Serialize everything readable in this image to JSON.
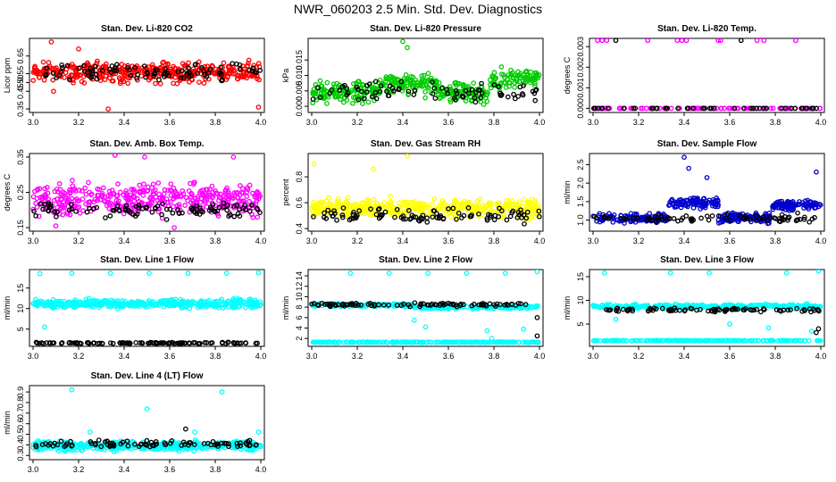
{
  "figure": {
    "title": "NWR_060203  2.5 Min. Std. Dev. Diagnostics",
    "secondary_color": "#000000"
  },
  "chart_data": [
    {
      "id": "co2",
      "type": "scatter",
      "title": "Stan. Dev. Li-820 CO2",
      "xlabel": "",
      "ylabel": "Licor ppm",
      "xlim": [
        3.0,
        4.0
      ],
      "ylim": [
        0.33,
        0.75
      ],
      "xticks": [
        "3.0",
        "3.2",
        "3.4",
        "3.6",
        "3.8",
        "4.0"
      ],
      "yticks": [
        "0.35",
        "0.45",
        "0.50",
        "0.55",
        "0.65"
      ],
      "color": "#ff0000",
      "series": [
        {
          "name": "primary",
          "color": "#ff0000",
          "base": 0.56,
          "spread": 0.05,
          "n": 420,
          "outliers": [
            [
              3.08,
              0.73
            ],
            [
              3.33,
              0.35
            ],
            [
              3.99,
              0.36
            ],
            [
              3.09,
              0.45
            ],
            [
              3.2,
              0.69
            ]
          ]
        },
        {
          "name": "secondary",
          "color": "#000000",
          "base": 0.56,
          "spread": 0.04,
          "n": 90,
          "outliers": []
        }
      ]
    },
    {
      "id": "pressure",
      "type": "scatter",
      "title": "Stan. Dev. Li-820 Pressure",
      "xlabel": "",
      "ylabel": "kPa",
      "xlim": [
        3.0,
        4.0
      ],
      "ylim": [
        -0.002,
        0.022
      ],
      "xticks": [
        "3.0",
        "3.2",
        "3.4",
        "3.6",
        "3.8",
        "4.0"
      ],
      "yticks": [
        "0.000",
        "0.005",
        "0.010",
        "0.015"
      ],
      "color": "#00cc00",
      "series": [
        {
          "name": "primary",
          "color": "#00cc00",
          "base": 0.0045,
          "spread": 0.003,
          "n": 420,
          "segments": [
            [
              3.3,
              3.55,
              0.007
            ],
            [
              3.55,
              3.78,
              0.0045
            ],
            [
              3.78,
              4.0,
              0.009
            ]
          ],
          "outliers": [
            [
              3.4,
              0.021
            ],
            [
              3.42,
              0.019
            ]
          ]
        },
        {
          "name": "secondary",
          "color": "#000000",
          "base": 0.0045,
          "spread": 0.0025,
          "n": 80,
          "outliers": []
        }
      ]
    },
    {
      "id": "temp",
      "type": "scatter",
      "title": "Stan. Dev. Li-820 Temp.",
      "xlabel": "",
      "ylabel": "degrees C",
      "xlim": [
        3.0,
        4.0
      ],
      "ylim": [
        -0.0002,
        0.0034
      ],
      "xticks": [
        "3.0",
        "3.2",
        "3.4",
        "3.6",
        "3.8",
        "4.0"
      ],
      "yticks": [
        "0.000",
        "0.001",
        "0.002",
        "0.003"
      ],
      "color": "#ff00ff",
      "series": [
        {
          "name": "primary",
          "color": "#ff00ff",
          "base": 0.0,
          "spread": 0.0,
          "n": 90,
          "outliers": [
            [
              3.02,
              0.0033
            ],
            [
              3.04,
              0.0033
            ],
            [
              3.06,
              0.0033
            ],
            [
              3.24,
              0.0033
            ],
            [
              3.37,
              0.0033
            ],
            [
              3.39,
              0.0033
            ],
            [
              3.41,
              0.0033
            ],
            [
              3.55,
              0.0033
            ],
            [
              3.56,
              0.0033
            ],
            [
              3.72,
              0.0033
            ],
            [
              3.75,
              0.0033
            ],
            [
              3.89,
              0.0033
            ]
          ]
        },
        {
          "name": "secondary",
          "color": "#000000",
          "base": 0.0,
          "spread": 0.0,
          "n": 50,
          "outliers": [
            [
              3.1,
              0.0033
            ],
            [
              3.65,
              0.0033
            ]
          ]
        }
      ]
    },
    {
      "id": "ambbox",
      "type": "scatter",
      "title": "Stan. Dev. Amb. Box Temp.",
      "xlabel": "",
      "ylabel": "degrees C",
      "xlim": [
        3.0,
        4.0
      ],
      "ylim": [
        0.14,
        0.36
      ],
      "xticks": [
        "3.0",
        "3.2",
        "3.4",
        "3.6",
        "3.8",
        "4.0"
      ],
      "yticks": [
        "0.15",
        "0.25",
        "0.35"
      ],
      "color": "#ff00ff",
      "series": [
        {
          "name": "primary",
          "color": "#ff00ff",
          "base": 0.23,
          "spread": 0.04,
          "n": 420,
          "outliers": [
            [
              3.36,
              0.355
            ],
            [
              3.49,
              0.35
            ],
            [
              3.88,
              0.35
            ],
            [
              3.1,
              0.155
            ],
            [
              3.62,
              0.15
            ]
          ]
        },
        {
          "name": "secondary",
          "color": "#000000",
          "base": 0.2,
          "spread": 0.02,
          "n": 100,
          "outliers": []
        }
      ]
    },
    {
      "id": "rh",
      "type": "scatter",
      "title": "Stan. Dev. Gas Stream RH",
      "xlabel": "",
      "ylabel": "percent",
      "xlim": [
        3.0,
        4.0
      ],
      "ylim": [
        0.38,
        0.98
      ],
      "xticks": [
        "3.0",
        "3.2",
        "3.4",
        "3.6",
        "3.8",
        "4.0"
      ],
      "yticks": [
        "0.4",
        "0.6",
        "0.8"
      ],
      "color": "#ffff00",
      "series": [
        {
          "name": "primary",
          "color": "#ffff00",
          "base": 0.56,
          "spread": 0.06,
          "n": 420,
          "outliers": [
            [
              3.42,
              0.96
            ],
            [
              3.01,
              0.9
            ],
            [
              3.27,
              0.86
            ]
          ]
        },
        {
          "name": "secondary",
          "color": "#000000",
          "base": 0.5,
          "spread": 0.05,
          "n": 100,
          "outliers": []
        }
      ]
    },
    {
      "id": "sampleflow",
      "type": "scatter",
      "title": "Stan. Dev. Sample Flow",
      "xlabel": "",
      "ylabel": "ml/min",
      "xlim": [
        3.0,
        4.0
      ],
      "ylim": [
        0.7,
        2.8
      ],
      "xticks": [
        "3.0",
        "3.2",
        "3.4",
        "3.6",
        "3.8",
        "4.0"
      ],
      "yticks": [
        "1.0",
        "1.5",
        "2.0",
        "2.5"
      ],
      "color": "#0000cc",
      "series": [
        {
          "name": "primary",
          "color": "#0000cc",
          "base": 1.05,
          "spread": 0.12,
          "n": 420,
          "segments": [
            [
              3.33,
              3.55,
              1.45
            ],
            [
              3.78,
              4.0,
              1.4
            ]
          ],
          "outliers": [
            [
              3.4,
              2.7
            ],
            [
              3.42,
              2.4
            ],
            [
              3.98,
              2.3
            ],
            [
              3.5,
              2.15
            ]
          ]
        },
        {
          "name": "secondary",
          "color": "#000000",
          "base": 1.05,
          "spread": 0.1,
          "n": 80,
          "outliers": []
        }
      ]
    },
    {
      "id": "line1",
      "type": "scatter",
      "title": "Stan. Dev. Line 1 Flow",
      "xlabel": "",
      "ylabel": "ml/min",
      "xlim": [
        3.0,
        4.0
      ],
      "ylim": [
        0.8,
        19.5
      ],
      "xticks": [
        "3.0",
        "3.2",
        "3.4",
        "3.6",
        "3.8",
        "4.0"
      ],
      "yticks": [
        "5",
        "10",
        "15"
      ],
      "color": "#00ffff",
      "series": [
        {
          "name": "primary",
          "color": "#00ffff",
          "base": 11.2,
          "spread": 0.9,
          "n": 420,
          "outliers": [
            [
              3.03,
              18.5
            ],
            [
              3.17,
              18.6
            ],
            [
              3.34,
              18.6
            ],
            [
              3.51,
              18.6
            ],
            [
              3.68,
              18.6
            ],
            [
              3.85,
              18.6
            ],
            [
              3.99,
              18.7
            ],
            [
              3.05,
              5.5
            ]
          ]
        },
        {
          "name": "secondary",
          "color": "#000000",
          "base": 1.6,
          "spread": 0.15,
          "n": 110,
          "outliers": []
        }
      ]
    },
    {
      "id": "line2",
      "type": "scatter",
      "title": "Stan. Dev. Line 2 Flow",
      "xlabel": "",
      "ylabel": "ml/min",
      "xlim": [
        3.0,
        4.0
      ],
      "ylim": [
        0.5,
        15.2
      ],
      "xticks": [
        "3.0",
        "3.2",
        "3.4",
        "3.6",
        "3.8",
        "4.0"
      ],
      "yticks": [
        "2",
        "4",
        "6",
        "8",
        "10",
        "12",
        "14"
      ],
      "color": "#00ffff",
      "series": [
        {
          "name": "primary",
          "color": "#00ffff",
          "base": 8.4,
          "spread": 0.3,
          "n": 300,
          "segments": [
            [
              3.45,
              4.0,
              8.0
            ]
          ],
          "outliers": [
            [
              3.17,
              14.5
            ],
            [
              3.34,
              14.5
            ],
            [
              3.51,
              14.5
            ],
            [
              3.68,
              14.5
            ],
            [
              3.85,
              14.5
            ],
            [
              3.99,
              14.8
            ],
            [
              3.45,
              5.5
            ],
            [
              3.5,
              4.2
            ],
            [
              3.77,
              3.5
            ],
            [
              3.79,
              2.0
            ],
            [
              3.93,
              3.8
            ]
          ]
        },
        {
          "name": "primary-low",
          "color": "#00ffff",
          "base": 1.3,
          "spread": 0.05,
          "n": 200,
          "outliers": []
        },
        {
          "name": "secondary",
          "color": "#000000",
          "base": 8.5,
          "spread": 0.3,
          "n": 90,
          "outliers": [
            [
              3.99,
              6.0
            ],
            [
              3.99,
              2.5
            ]
          ]
        }
      ]
    },
    {
      "id": "line3",
      "type": "scatter",
      "title": "Stan. Dev. Line 3 Flow",
      "xlabel": "",
      "ylabel": "ml/min",
      "xlim": [
        3.0,
        4.0
      ],
      "ylim": [
        0.3,
        16.5
      ],
      "xticks": [
        "3.0",
        "3.2",
        "3.4",
        "3.6",
        "3.8",
        "4.0"
      ],
      "yticks": [
        "5",
        "10",
        "15"
      ],
      "color": "#00ffff",
      "series": [
        {
          "name": "primary",
          "color": "#00ffff",
          "base": 8.7,
          "spread": 0.4,
          "n": 300,
          "outliers": [
            [
              3.05,
              15.8
            ],
            [
              3.34,
              15.8
            ],
            [
              3.51,
              15.8
            ],
            [
              3.85,
              15.8
            ],
            [
              3.99,
              16.2
            ],
            [
              3.1,
              6.0
            ],
            [
              3.6,
              5.0
            ],
            [
              3.77,
              4.2
            ],
            [
              3.96,
              3.5
            ]
          ]
        },
        {
          "name": "primary-low",
          "color": "#00ffff",
          "base": 1.5,
          "spread": 0.05,
          "n": 200,
          "outliers": []
        },
        {
          "name": "secondary",
          "color": "#000000",
          "base": 8.0,
          "spread": 0.35,
          "n": 90,
          "outliers": [
            [
              3.99,
              4.0
            ],
            [
              3.98,
              3.2
            ]
          ]
        }
      ]
    },
    {
      "id": "line4",
      "type": "scatter",
      "title": "Stan. Dev. Line 4 (LT) Flow",
      "xlabel": "",
      "ylabel": "ml/min",
      "xlim": [
        3.0,
        4.0
      ],
      "ylim": [
        0.26,
        0.96
      ],
      "xticks": [
        "3.0",
        "3.2",
        "3.4",
        "3.6",
        "3.8",
        "4.0"
      ],
      "yticks": [
        "0.3",
        "0.4",
        "0.5",
        "0.6",
        "0.7",
        "0.8",
        "0.9"
      ],
      "color": "#00ffff",
      "series": [
        {
          "name": "primary",
          "color": "#00ffff",
          "base": 0.39,
          "spread": 0.04,
          "n": 420,
          "outliers": [
            [
              3.17,
              0.92
            ],
            [
              3.83,
              0.9
            ],
            [
              3.5,
              0.74
            ],
            [
              3.25,
              0.52
            ],
            [
              3.71,
              0.52
            ],
            [
              3.99,
              0.52
            ]
          ]
        },
        {
          "name": "secondary",
          "color": "#000000",
          "base": 0.41,
          "spread": 0.03,
          "n": 90,
          "outliers": [
            [
              3.67,
              0.55
            ]
          ]
        }
      ]
    }
  ]
}
